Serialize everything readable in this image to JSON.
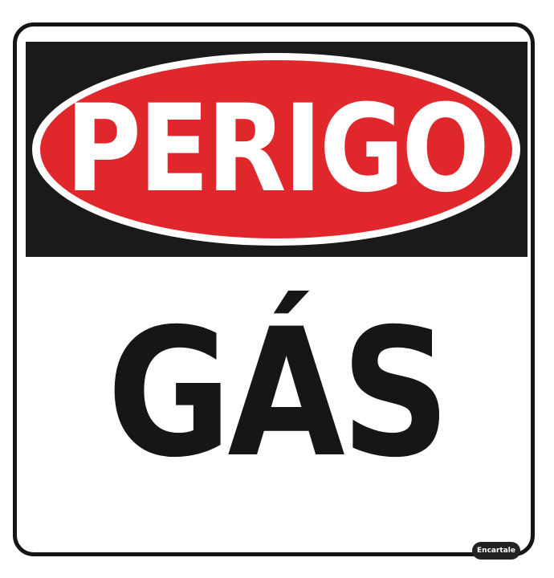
{
  "sign": {
    "title": "PERIGO",
    "message": "GÁS",
    "brand": "Encartale"
  },
  "colors": {
    "red": "#e0272c",
    "black": "#1a1a1a",
    "white": "#ffffff"
  }
}
